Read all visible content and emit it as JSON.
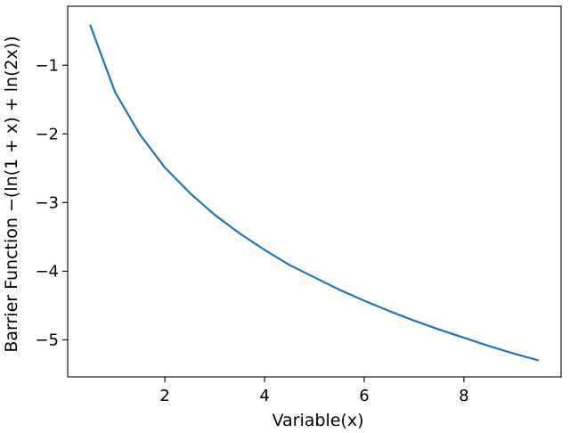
{
  "chart_data": {
    "type": "line",
    "xlabel": "Variable(x)",
    "ylabel": "Barrier Function −(ln(1 + x) + ln(2x))",
    "xlim": [
      0.05,
      9.95
    ],
    "ylim": [
      -5.54,
      -0.14
    ],
    "grid": false,
    "x_ticks": [
      {
        "value": 2,
        "label": "2"
      },
      {
        "value": 4,
        "label": "4"
      },
      {
        "value": 6,
        "label": "6"
      },
      {
        "value": 8,
        "label": "8"
      }
    ],
    "y_ticks": [
      {
        "value": -1,
        "label": "−1"
      },
      {
        "value": -2,
        "label": "−2"
      },
      {
        "value": -3,
        "label": "−3"
      },
      {
        "value": -4,
        "label": "−4"
      },
      {
        "value": -5,
        "label": "−5"
      }
    ],
    "series": [
      {
        "color": "#1f77b4",
        "x": [
          0.5,
          1.0,
          1.5,
          2.0,
          2.5,
          3.0,
          3.5,
          4.0,
          4.5,
          5.0,
          5.5,
          6.0,
          6.5,
          7.0,
          7.5,
          8.0,
          8.5,
          9.0,
          9.5
        ],
        "y": [
          -0.41,
          -1.39,
          -2.01,
          -2.49,
          -2.86,
          -3.18,
          -3.45,
          -3.69,
          -3.91,
          -4.09,
          -4.27,
          -4.43,
          -4.58,
          -4.72,
          -4.85,
          -4.97,
          -5.09,
          -5.2,
          -5.3
        ]
      }
    ]
  }
}
